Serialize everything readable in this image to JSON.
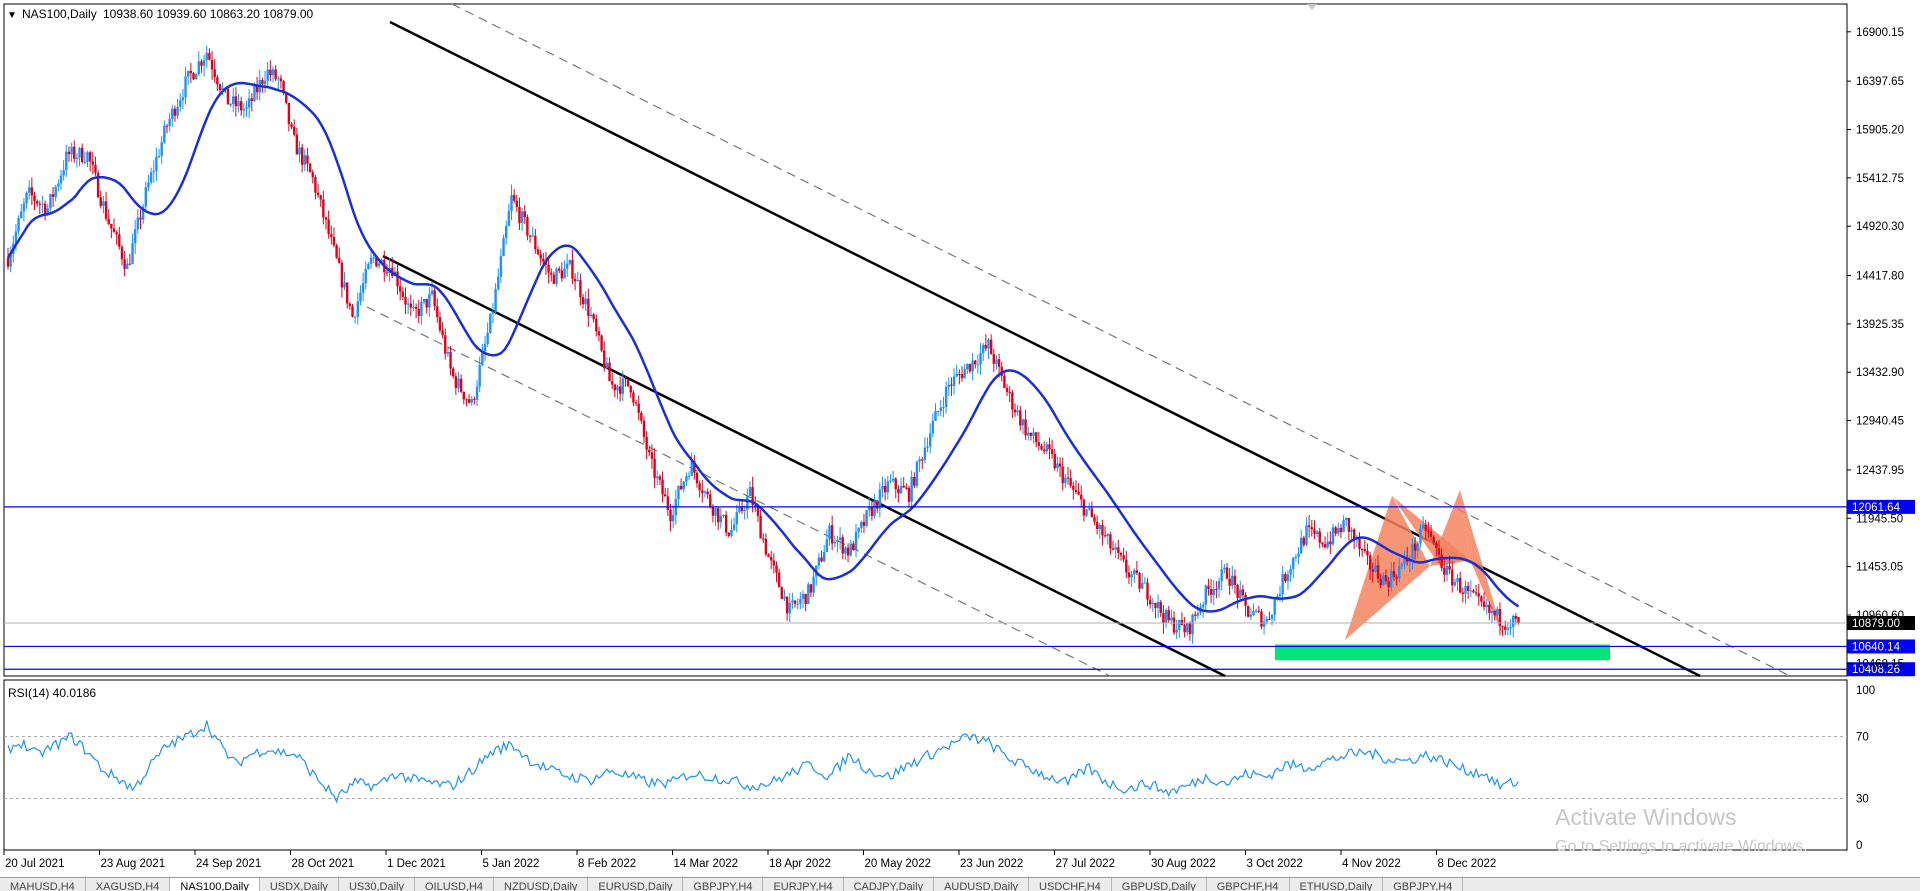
{
  "header": {
    "arrow": "▼",
    "symbol": "NAS100,Daily",
    "ohlc": "10938.60 10939.60 10863.20 10879.00"
  },
  "rsi_header": "RSI(14) 40.0186",
  "chart_data": [
    {
      "type": "candlestick",
      "symbol": "NAS100",
      "timeframe": "Daily",
      "last_bar": {
        "open": 10938.6,
        "high": 10939.6,
        "low": 10863.2,
        "close": 10879.0
      },
      "y_ticks": [
        "16900.15",
        "16397.65",
        "15905.20",
        "15412.75",
        "14920.30",
        "14417.80",
        "13925.35",
        "13432.90",
        "12940.45",
        "12437.95",
        "11945.50",
        "11453.05",
        "10960.60",
        "10468.15"
      ],
      "y_range": [
        10380,
        17000
      ],
      "x_ticks": [
        "20 Jul 2021",
        "23 Aug 2021",
        "24 Sep 2021",
        "28 Oct 2021",
        "1 Dec 2021",
        "5 Jan 2022",
        "8 Feb 2022",
        "14 Mar 2022",
        "18 Apr 2022",
        "20 May 2022",
        "23 Jun 2022",
        "27 Jul 2022",
        "30 Aug 2022",
        "3 Oct 2022",
        "4 Nov 2022",
        "8 Dec 2022"
      ],
      "price_path_anchors": [
        [
          0,
          14600
        ],
        [
          15,
          15250
        ],
        [
          30,
          15100
        ],
        [
          45,
          15650
        ],
        [
          60,
          15650
        ],
        [
          75,
          15000
        ],
        [
          90,
          14500
        ],
        [
          105,
          15300
        ],
        [
          120,
          15950
        ],
        [
          135,
          16400
        ],
        [
          150,
          16700
        ],
        [
          165,
          16200
        ],
        [
          180,
          16100
        ],
        [
          195,
          16500
        ],
        [
          205,
          16400
        ],
        [
          215,
          15800
        ],
        [
          230,
          15400
        ],
        [
          245,
          14700
        ],
        [
          260,
          14000
        ],
        [
          275,
          14600
        ],
        [
          290,
          14500
        ],
        [
          305,
          14000
        ],
        [
          320,
          14200
        ],
        [
          335,
          13400
        ],
        [
          350,
          13100
        ],
        [
          365,
          14000
        ],
        [
          380,
          15200
        ],
        [
          395,
          14800
        ],
        [
          410,
          14400
        ],
        [
          425,
          14500
        ],
        [
          440,
          14000
        ],
        [
          455,
          13300
        ],
        [
          470,
          13300
        ],
        [
          485,
          12500
        ],
        [
          500,
          12000
        ],
        [
          515,
          12500
        ],
        [
          530,
          12100
        ],
        [
          545,
          11800
        ],
        [
          560,
          12200
        ],
        [
          575,
          11500
        ],
        [
          590,
          11000
        ],
        [
          605,
          11200
        ],
        [
          620,
          11800
        ],
        [
          635,
          11600
        ],
        [
          650,
          12000
        ],
        [
          665,
          12300
        ],
        [
          680,
          12200
        ],
        [
          695,
          12800
        ],
        [
          710,
          13300
        ],
        [
          725,
          13500
        ],
        [
          740,
          13700
        ],
        [
          755,
          13200
        ],
        [
          770,
          12800
        ],
        [
          785,
          12600
        ],
        [
          800,
          12300
        ],
        [
          815,
          12000
        ],
        [
          830,
          11700
        ],
        [
          845,
          11400
        ],
        [
          860,
          11200
        ],
        [
          875,
          10900
        ],
        [
          890,
          10800
        ],
        [
          905,
          11200
        ],
        [
          920,
          11400
        ],
        [
          935,
          11000
        ],
        [
          950,
          10900
        ],
        [
          965,
          11400
        ],
        [
          980,
          11800
        ],
        [
          995,
          11700
        ],
        [
          1010,
          11900
        ],
        [
          1025,
          11500
        ],
        [
          1040,
          11300
        ],
        [
          1055,
          11500
        ],
        [
          1070,
          11850
        ],
        [
          1085,
          11400
        ],
        [
          1100,
          11200
        ],
        [
          1115,
          11000
        ],
        [
          1130,
          10900
        ],
        [
          1140,
          10879
        ]
      ],
      "highlighted_last_price": 10879.0,
      "horizontal_levels": [
        {
          "label": "12061.64",
          "value": 12061.64,
          "color": "#0000ff"
        },
        {
          "label": "10640.14",
          "value": 10640.14,
          "color": "#0000ff"
        },
        {
          "label": "10408.26",
          "value": 10408.26,
          "color": "#0000ff"
        }
      ],
      "moving_average": {
        "color": "#1a2fd6"
      },
      "support_zone": {
        "from": 10500,
        "to": 10660,
        "color": "#00e676"
      },
      "channel": {
        "solid_color": "#000000",
        "dashed_color": "#777777"
      },
      "pattern": {
        "kind": "triangles",
        "color": "#f4845f"
      }
    },
    {
      "type": "line",
      "indicator": "RSI(14)",
      "value": 40.0186,
      "y_ticks": [
        "100",
        "70",
        "30",
        "0"
      ],
      "levels": [
        70,
        30
      ],
      "y_range": [
        0,
        100
      ],
      "line_color": "#1e90ff",
      "rsi_path_anchors": [
        [
          0,
          62
        ],
        [
          10,
          66
        ],
        [
          22,
          58
        ],
        [
          35,
          64
        ],
        [
          48,
          70
        ],
        [
          60,
          60
        ],
        [
          72,
          48
        ],
        [
          85,
          42
        ],
        [
          95,
          36
        ],
        [
          108,
          52
        ],
        [
          120,
          64
        ],
        [
          135,
          70
        ],
        [
          150,
          78
        ],
        [
          162,
          62
        ],
        [
          172,
          52
        ],
        [
          182,
          58
        ],
        [
          195,
          62
        ],
        [
          205,
          60
        ],
        [
          218,
          58
        ],
        [
          232,
          44
        ],
        [
          248,
          30
        ],
        [
          262,
          40
        ],
        [
          278,
          38
        ],
        [
          292,
          46
        ],
        [
          306,
          42
        ],
        [
          320,
          40
        ],
        [
          335,
          38
        ],
        [
          350,
          48
        ],
        [
          365,
          60
        ],
        [
          380,
          65
        ],
        [
          395,
          54
        ],
        [
          410,
          48
        ],
        [
          425,
          44
        ],
        [
          440,
          42
        ],
        [
          455,
          48
        ],
        [
          470,
          44
        ],
        [
          485,
          40
        ],
        [
          500,
          40
        ],
        [
          515,
          46
        ],
        [
          530,
          44
        ],
        [
          545,
          42
        ],
        [
          560,
          38
        ],
        [
          575,
          40
        ],
        [
          590,
          46
        ],
        [
          605,
          52
        ],
        [
          620,
          44
        ],
        [
          635,
          58
        ],
        [
          650,
          48
        ],
        [
          665,
          44
        ],
        [
          680,
          52
        ],
        [
          695,
          58
        ],
        [
          710,
          64
        ],
        [
          725,
          70
        ],
        [
          740,
          66
        ],
        [
          755,
          56
        ],
        [
          770,
          50
        ],
        [
          785,
          44
        ],
        [
          800,
          40
        ],
        [
          815,
          50
        ],
        [
          830,
          40
        ],
        [
          845,
          36
        ],
        [
          860,
          40
        ],
        [
          875,
          34
        ],
        [
          890,
          38
        ],
        [
          905,
          44
        ],
        [
          920,
          40
        ],
        [
          935,
          46
        ],
        [
          950,
          44
        ],
        [
          965,
          52
        ],
        [
          980,
          50
        ],
        [
          995,
          54
        ],
        [
          1010,
          58
        ],
        [
          1025,
          60
        ],
        [
          1040,
          56
        ],
        [
          1055,
          54
        ],
        [
          1070,
          58
        ],
        [
          1085,
          54
        ],
        [
          1100,
          48
        ],
        [
          1115,
          46
        ],
        [
          1125,
          38
        ],
        [
          1135,
          40
        ],
        [
          1140,
          40
        ]
      ]
    }
  ],
  "watermark": {
    "line1": "Activate Windows",
    "line2": "Go to Settings to activate Windows."
  },
  "tabs": [
    "MAHUSD,H4",
    "XAGUSD,H4",
    "NAS100,Daily",
    "USDX,Daily",
    "US30,Daily",
    "OILUSD,H4",
    "NZDUSD,Daily",
    "EURUSD,Daily",
    "GBPJPY,H4",
    "EURJPY,H4",
    "CADJPY,Daily",
    "AUDUSD,Daily",
    "USDCHF,H4",
    "GBPUSD,Daily",
    "GBPCHF,H4",
    "ETHUSD,Daily",
    "GBPJPY,H4"
  ],
  "active_tab": 2
}
